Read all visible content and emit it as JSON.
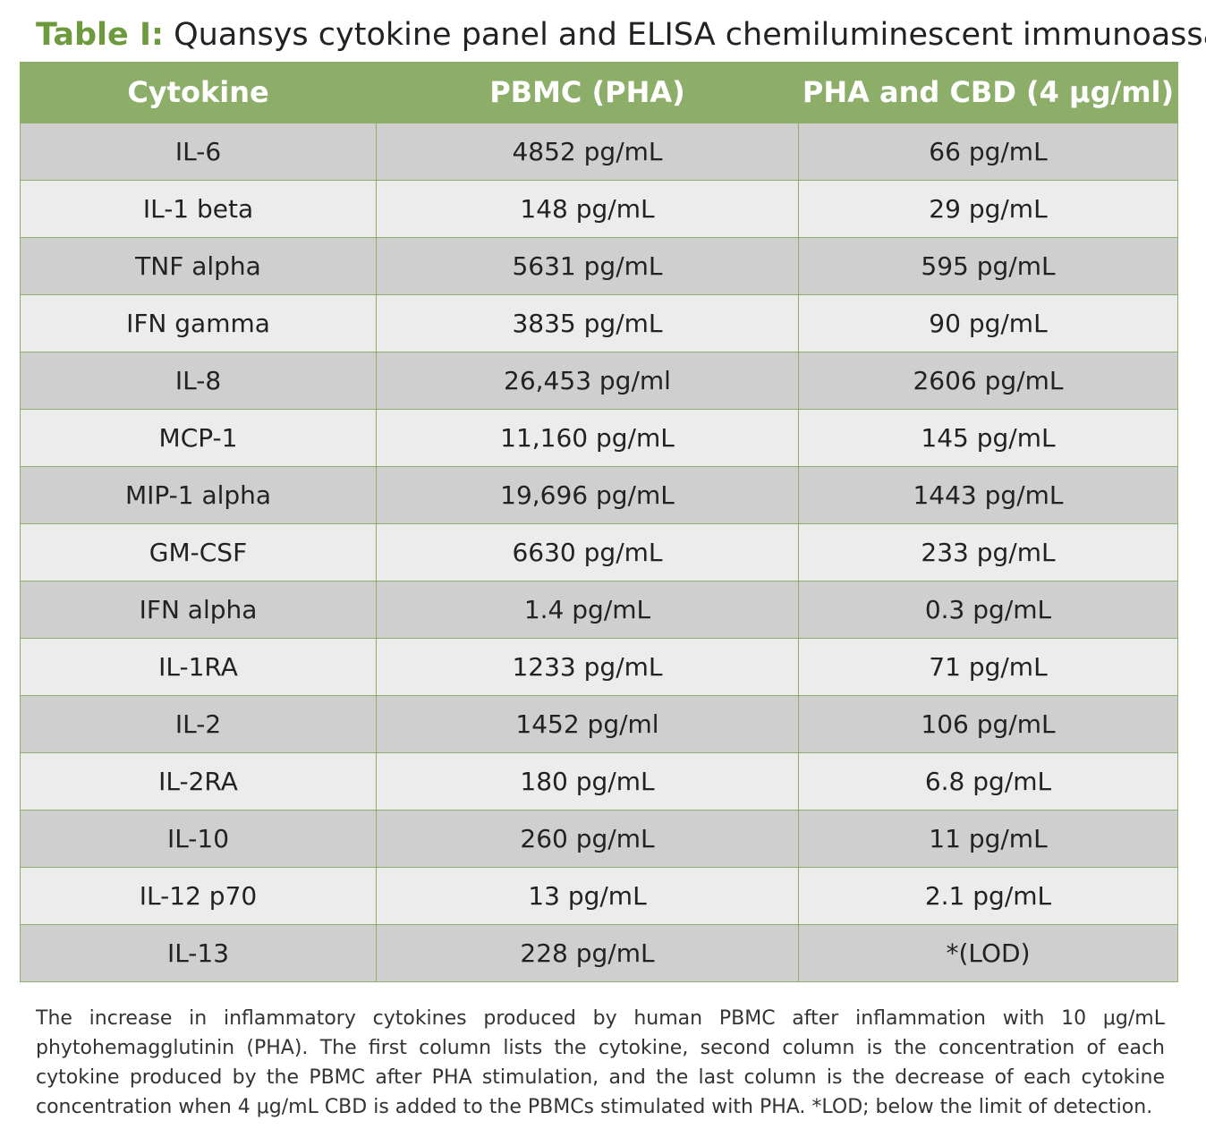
{
  "title": {
    "label": "Table I:",
    "text": " Quansys cytokine panel and ELISA chemiluminescent immunoassay"
  },
  "table": {
    "headers": [
      "Cytokine",
      "PBMC (PHA)",
      "PHA and CBD (4 μg/ml)"
    ],
    "rows": [
      [
        "IL-6",
        "4852 pg/mL",
        "66 pg/mL"
      ],
      [
        "IL-1 beta",
        "148 pg/mL",
        "29 pg/mL"
      ],
      [
        "TNF alpha",
        "5631 pg/mL",
        "595 pg/mL"
      ],
      [
        "IFN gamma",
        "3835 pg/mL",
        "90 pg/mL"
      ],
      [
        "IL-8",
        "26,453 pg/ml",
        "2606 pg/mL"
      ],
      [
        "MCP-1",
        "11,160 pg/mL",
        "145 pg/mL"
      ],
      [
        "MIP-1 alpha",
        "19,696 pg/mL",
        "1443 pg/mL"
      ],
      [
        "GM-CSF",
        "6630 pg/mL",
        "233 pg/mL"
      ],
      [
        "IFN alpha",
        "1.4 pg/mL",
        "0.3 pg/mL"
      ],
      [
        "IL-1RA",
        "1233 pg/mL",
        "71 pg/mL"
      ],
      [
        "IL-2",
        "1452 pg/ml",
        "106 pg/mL"
      ],
      [
        "IL-2RA",
        "180 pg/mL",
        "6.8 pg/mL"
      ],
      [
        "IL-10",
        "260 pg/mL",
        "11 pg/mL"
      ],
      [
        "IL-12 p70",
        "13 pg/mL",
        "2.1 pg/mL"
      ],
      [
        "IL-13",
        "228 pg/mL",
        "*(LOD)"
      ]
    ]
  },
  "caption": "The increase in inflammatory cytokines produced by human PBMC after inflammation with 10 μg/mL phytohemagglutinin (PHA). The first column lists the cytokine, second column is the concentration of each cytokine produced by the PBMC after PHA stimulation, and the last column is the decrease of each cytokine concentration when 4 μg/mL CBD is added to the PBMCs stimulated with PHA. *LOD; below the limit of detection.",
  "colors": {
    "accent_green": "#6e9a3e",
    "header_bg": "#8cae69",
    "row_dark": "#cfcfcf",
    "row_light": "#ececec"
  }
}
